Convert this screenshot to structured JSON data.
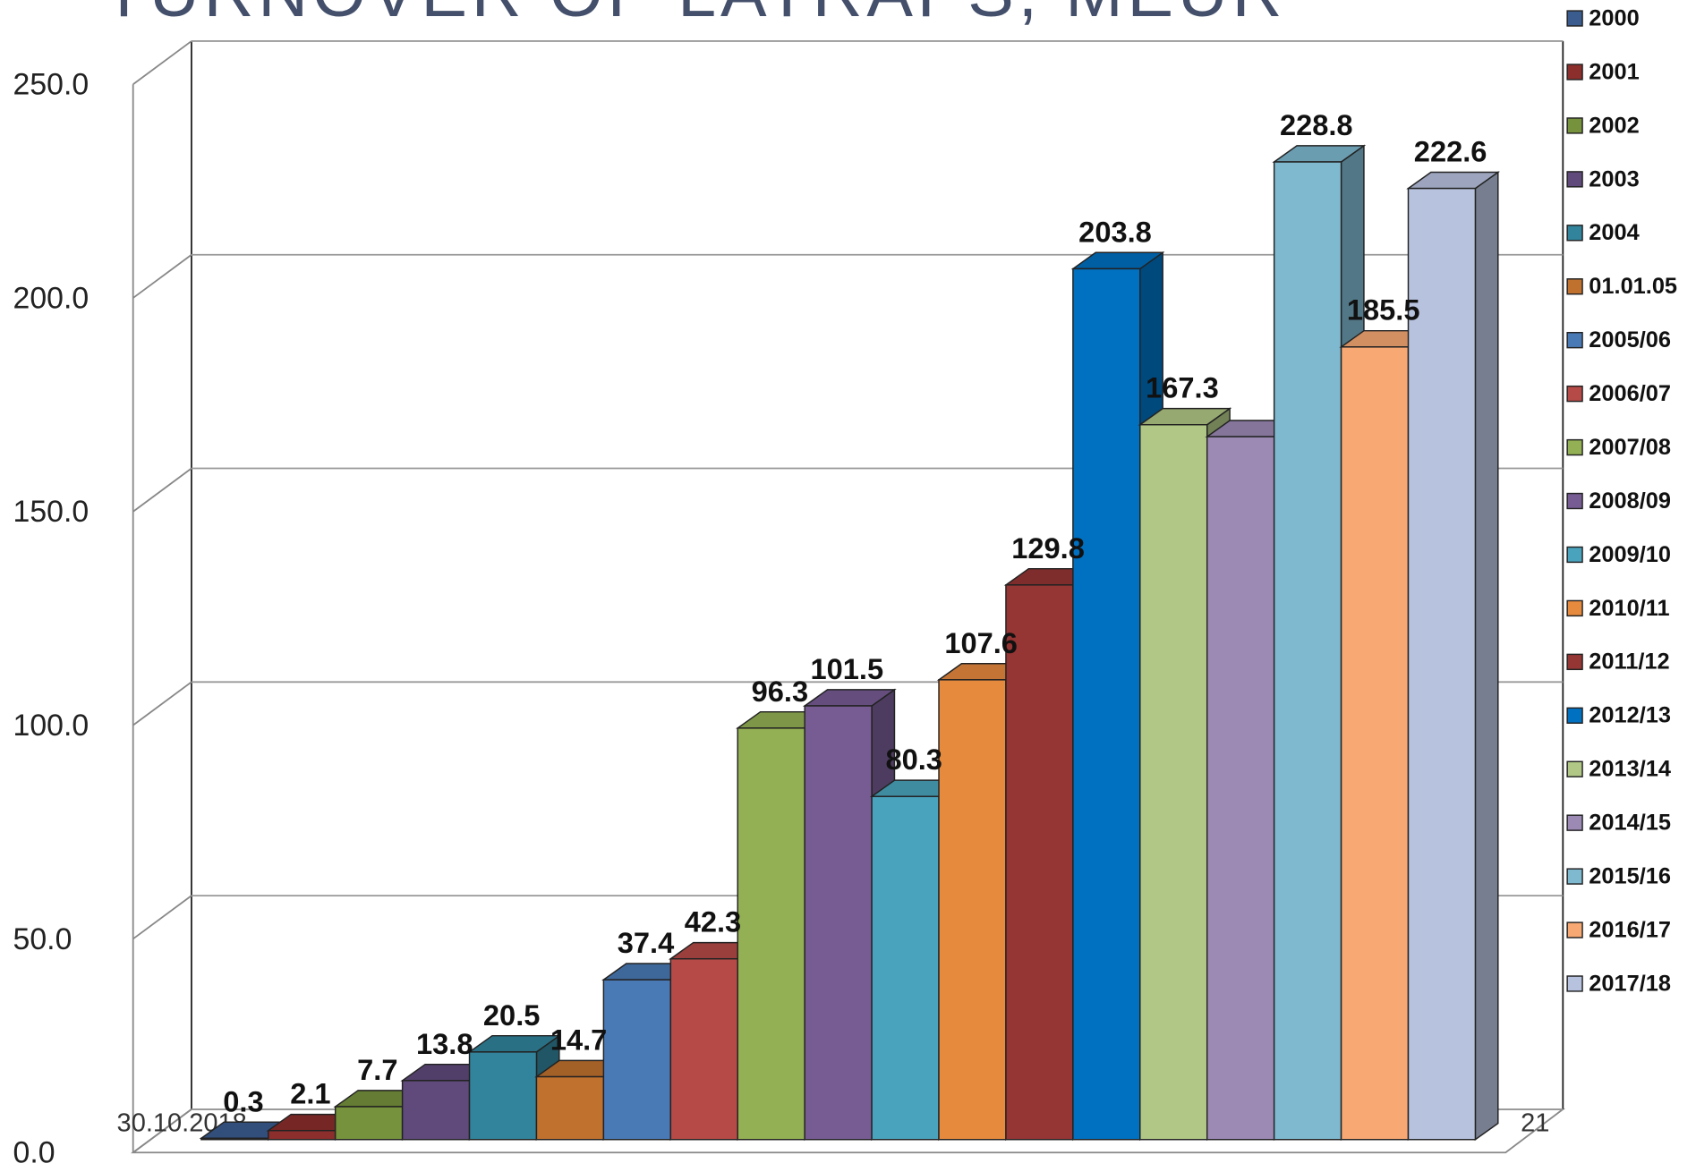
{
  "chart_data": {
    "type": "bar3d",
    "title": "TURNOVER OF LATRAPS, MEUR",
    "categories": [
      "2000",
      "2001",
      "2002",
      "2003",
      "2004",
      "01.01.05",
      "2005/06",
      "2006/07",
      "2007/08",
      "2008/09",
      "2009/10",
      "2010/11",
      "2011/12",
      "2012/13",
      "2013/14",
      "2014/15",
      "2015/16",
      "2016/17",
      "2017/18"
    ],
    "values": [
      0.3,
      2.1,
      7.7,
      13.8,
      20.5,
      14.7,
      37.4,
      42.3,
      96.3,
      101.5,
      80.3,
      107.6,
      129.8,
      203.8,
      167.3,
      164.5,
      228.8,
      185.5,
      222.6
    ],
    "value_labels": [
      "0.3",
      "2.1",
      "7.7",
      "13.8",
      "20.5",
      "14.7",
      "37.4",
      "42.3",
      "96.3",
      "101.5",
      "80.3",
      "107.6",
      "129.8",
      "203.8",
      "167.3",
      null,
      "228.8",
      "185.5",
      "222.6"
    ],
    "colors": [
      "#3b5c8f",
      "#8b2e2c",
      "#76923c",
      "#5f4a7b",
      "#31849b",
      "#c0712e",
      "#4a7ab5",
      "#b54a47",
      "#93b054",
      "#775c94",
      "#4aa3bc",
      "#e68a3e",
      "#953534",
      "#0070c0",
      "#b0c785",
      "#9c8ab5",
      "#7eb9d0",
      "#f7a873",
      "#b7c2de"
    ],
    "ylim": [
      0,
      250
    ],
    "yticks": [
      {
        "value": 0,
        "label": "0.0"
      },
      {
        "value": 50,
        "label": "50.0"
      },
      {
        "value": 100,
        "label": "100.0"
      },
      {
        "value": 150,
        "label": "150.0"
      },
      {
        "value": 200,
        "label": "200.0"
      },
      {
        "value": 250,
        "label": "250.0"
      }
    ],
    "grid": true,
    "legend": "right"
  },
  "footer": {
    "date": "30.10.2018",
    "page": "21"
  }
}
